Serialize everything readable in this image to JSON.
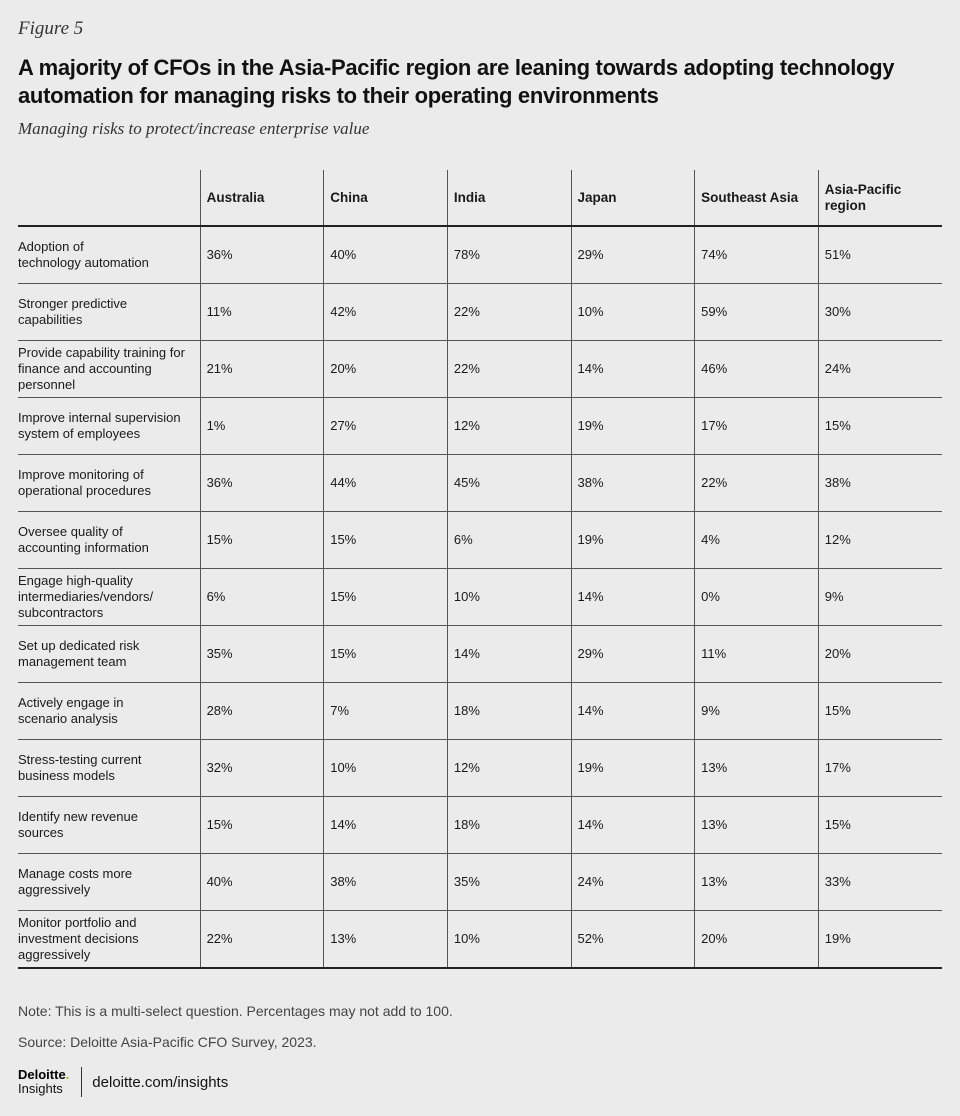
{
  "figure_label": "Figure 5",
  "title": "A majority of CFOs in the Asia-Pacific region are leaning towards adopting technology automation for managing risks to their operating environments",
  "subtitle": "Managing risks to protect/increase enterprise value",
  "chart_data": {
    "type": "table",
    "title": "A majority of CFOs in the Asia-Pacific region are leaning towards adopting technology automation for managing risks to their operating environments",
    "subtitle": "Managing risks to protect/increase enterprise value",
    "columns": [
      "Australia",
      "China",
      "India",
      "Japan",
      "Southeast Asia",
      "Asia-Pacific region"
    ],
    "rows": [
      {
        "label": "Adoption of\ntechnology automation",
        "values": [
          "36%",
          "40%",
          "78%",
          "29%",
          "74%",
          "51%"
        ]
      },
      {
        "label": "Stronger predictive\ncapabilities",
        "values": [
          "11%",
          "42%",
          "22%",
          "10%",
          "59%",
          "30%"
        ]
      },
      {
        "label": "Provide capability training for\nfinance and accounting\npersonnel",
        "values": [
          "21%",
          "20%",
          "22%",
          "14%",
          "46%",
          "24%"
        ]
      },
      {
        "label": "Improve internal supervision\nsystem of employees",
        "values": [
          "1%",
          "27%",
          "12%",
          "19%",
          "17%",
          "15%"
        ]
      },
      {
        "label": "Improve monitoring of\noperational procedures",
        "values": [
          "36%",
          "44%",
          "45%",
          "38%",
          "22%",
          "38%"
        ]
      },
      {
        "label": "Oversee quality of\naccounting information",
        "values": [
          "15%",
          "15%",
          "6%",
          "19%",
          "4%",
          "12%"
        ]
      },
      {
        "label": "Engage high-quality\nintermediaries/vendors/\nsubcontractors",
        "values": [
          "6%",
          "15%",
          "10%",
          "14%",
          "0%",
          "9%"
        ]
      },
      {
        "label": "Set up dedicated risk\nmanagement team",
        "values": [
          "35%",
          "15%",
          "14%",
          "29%",
          "11%",
          "20%"
        ]
      },
      {
        "label": "Actively engage in\nscenario analysis",
        "values": [
          "28%",
          "7%",
          "18%",
          "14%",
          "9%",
          "15%"
        ]
      },
      {
        "label": "Stress-testing current\nbusiness models",
        "values": [
          "32%",
          "10%",
          "12%",
          "19%",
          "13%",
          "17%"
        ]
      },
      {
        "label": "Identify new revenue\nsources",
        "values": [
          "15%",
          "14%",
          "18%",
          "14%",
          "13%",
          "15%"
        ]
      },
      {
        "label": "Manage costs more\naggressively",
        "values": [
          "40%",
          "38%",
          "35%",
          "24%",
          "13%",
          "33%"
        ]
      },
      {
        "label": "Monitor portfolio and\ninvestment decisions\naggressively",
        "values": [
          "22%",
          "13%",
          "10%",
          "52%",
          "20%",
          "19%"
        ]
      }
    ]
  },
  "note": "Note: This is a multi-select question. Percentages may not add to 100.",
  "source": "Source: Deloitte Asia-Pacific CFO Survey, 2023.",
  "footer": {
    "brand_name": "Deloitte",
    "brand_dot": ".",
    "brand_sub": "Insights",
    "url": "deloitte.com/insights"
  },
  "colors": {
    "background": "#ebebeb",
    "text": "#1a1a1a",
    "brand_dot": "#86bc25"
  }
}
